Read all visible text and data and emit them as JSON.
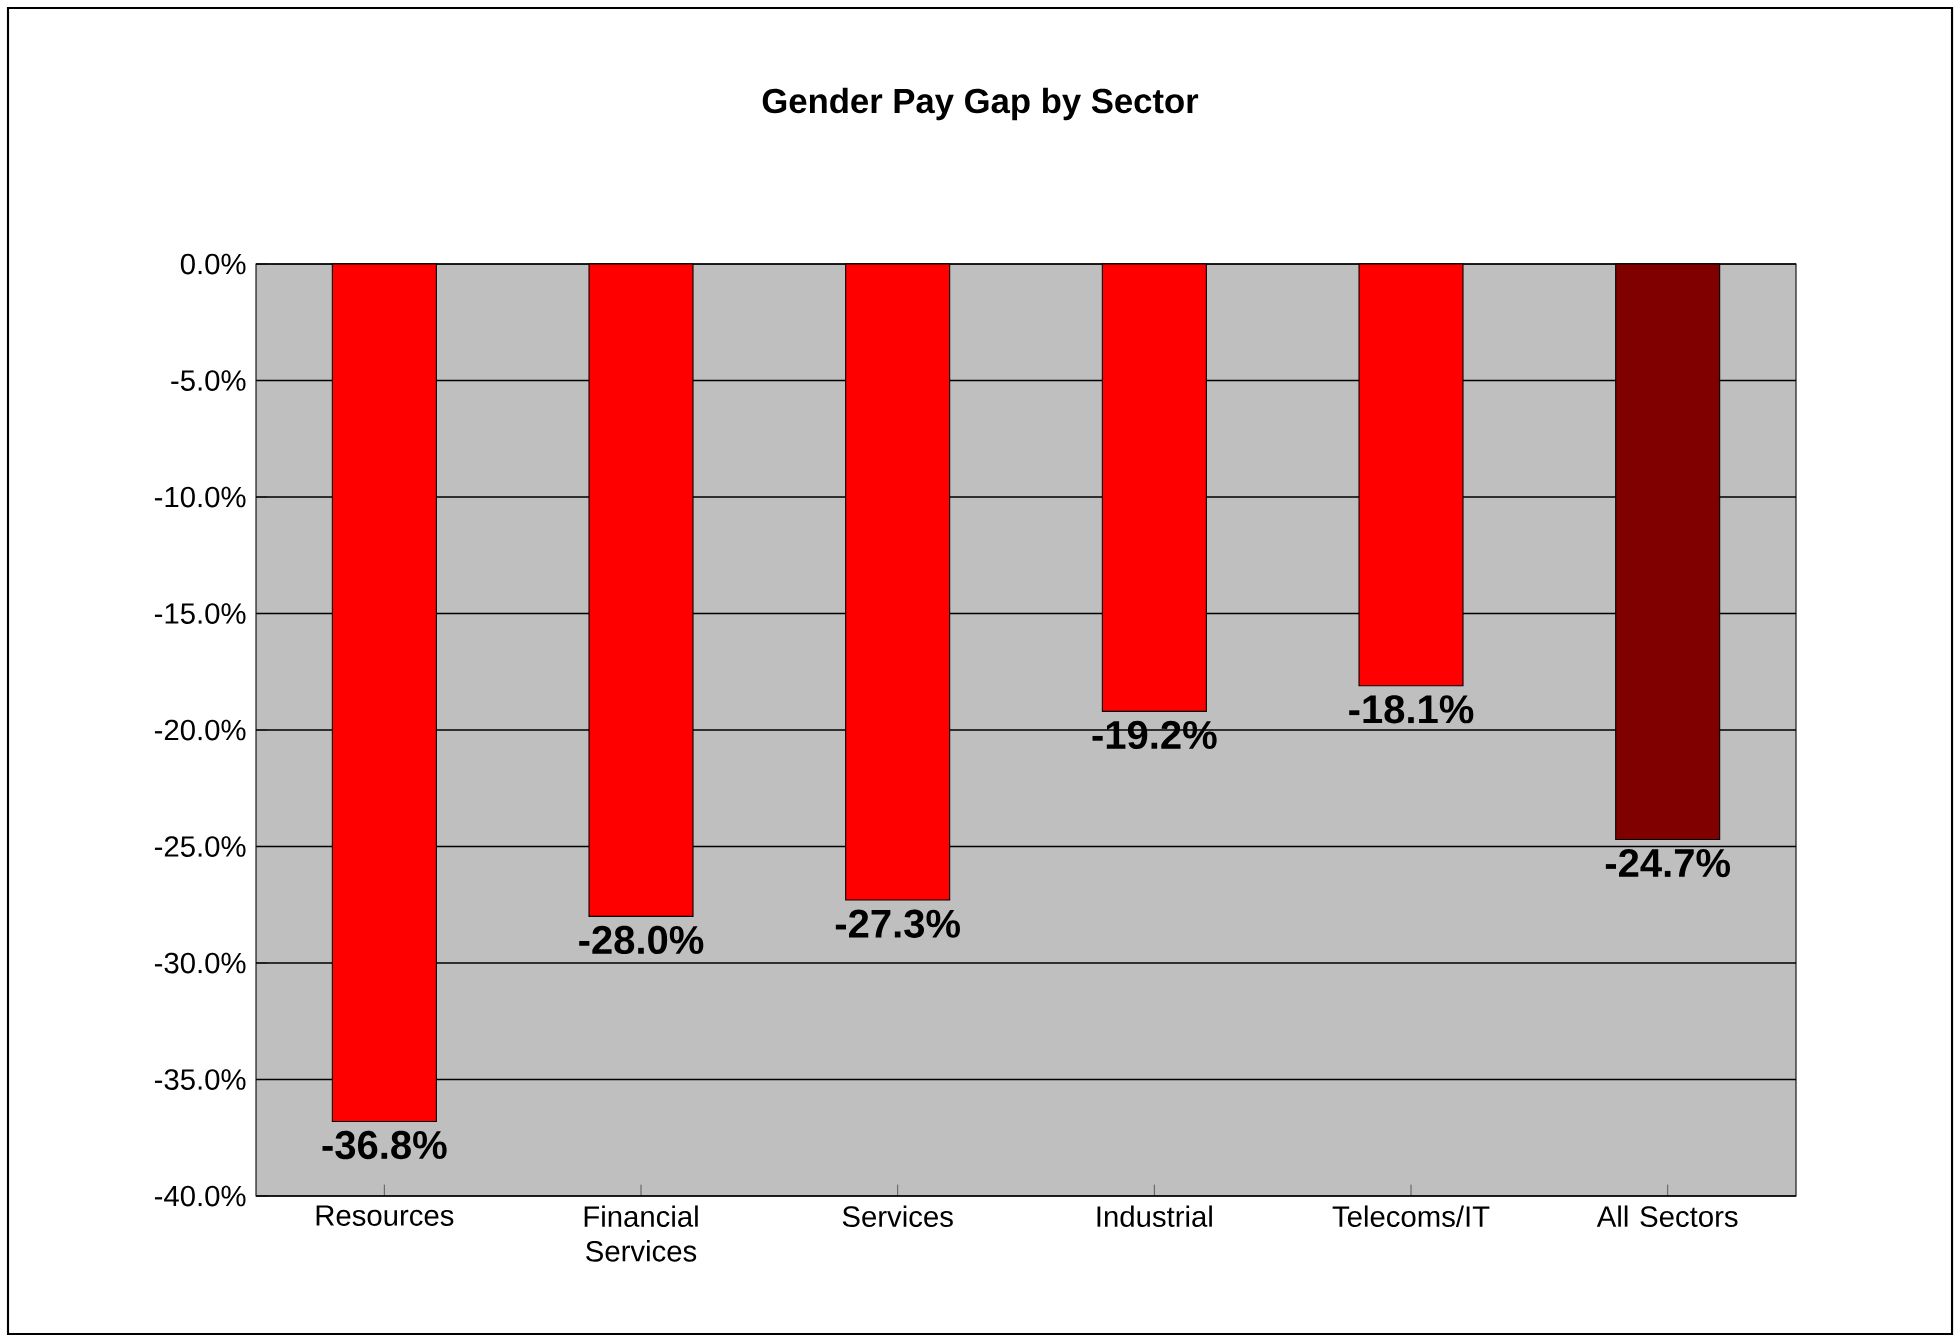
{
  "chart_data": {
    "type": "bar",
    "title": "Gender Pay Gap by Sector",
    "categories": [
      "Resources",
      "Financial Services",
      "Services",
      "Industrial",
      "Telecoms/IT",
      "All Sectors"
    ],
    "values": [
      -36.8,
      -28.0,
      -27.3,
      -19.2,
      -18.1,
      -24.7
    ],
    "colors": [
      "#ff0000",
      "#ff0000",
      "#ff0000",
      "#ff0000",
      "#ff0000",
      "#800000"
    ],
    "value_labels": [
      "-36.8%",
      "-28.0%",
      "-27.3%",
      "-19.2%",
      "-18.1%",
      "-24.7%"
    ],
    "ylim": [
      -40,
      0
    ],
    "yticks": [
      {
        "value": -40,
        "label": "-40.0%"
      },
      {
        "value": -35,
        "label": "-35.0%"
      },
      {
        "value": -30,
        "label": "-30.0%"
      },
      {
        "value": -25,
        "label": "-25.0%"
      },
      {
        "value": -20,
        "label": "-20.0%"
      },
      {
        "value": -15,
        "label": "-15.0%"
      },
      {
        "value": -10,
        "label": "-10.0%"
      },
      {
        "value": -5,
        "label": "-5.0%"
      },
      {
        "value": 0,
        "label": "0.0%"
      }
    ],
    "grid": "y"
  }
}
